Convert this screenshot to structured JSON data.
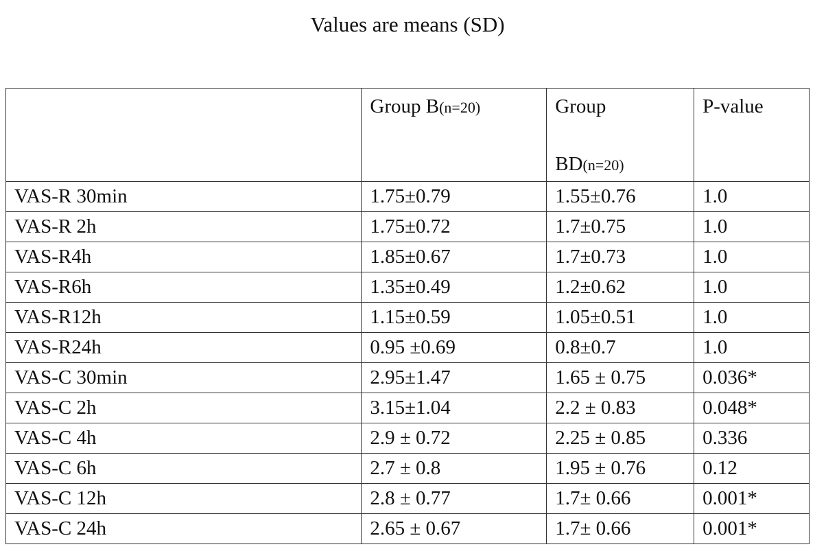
{
  "header": {
    "title": "Values are means (SD)"
  },
  "table": {
    "columns": [
      {
        "lines": [
          "Group B"
        ],
        "note": "(n=20)"
      },
      {
        "lines": [
          "Group",
          "BD"
        ],
        "note": "(n=20)"
      },
      {
        "lines": [
          "P-value"
        ]
      }
    ],
    "rows": [
      [
        "VAS-R 30min",
        "1.75±0.79",
        "1.55±0.76",
        "1.0"
      ],
      [
        "VAS-R 2h",
        "1.75±0.72",
        "1.7±0.75",
        "1.0"
      ],
      [
        "VAS-R4h",
        "1.85±0.67",
        "1.7±0.73",
        "1.0"
      ],
      [
        "VAS-R6h",
        "1.35±0.49",
        "1.2±0.62",
        "1.0"
      ],
      [
        "VAS-R12h",
        "1.15±0.59",
        "1.05±0.51",
        "1.0"
      ],
      [
        "VAS-R24h",
        "0.95 ±0.69",
        "0.8±0.7",
        "1.0"
      ],
      [
        "VAS-C 30min",
        "2.95±1.47",
        "1.65 ± 0.75",
        "0.036*"
      ],
      [
        "VAS-C 2h",
        "3.15±1.04",
        "2.2 ± 0.83",
        "0.048*"
      ],
      [
        "VAS-C 4h",
        "2.9 ± 0.72",
        "2.25 ± 0.85",
        "0.336"
      ],
      [
        "VAS-C 6h",
        "2.7 ± 0.8",
        "1.95 ± 0.76",
        "0.12"
      ],
      [
        "VAS-C 12h",
        "2.8 ± 0.77",
        "1.7± 0.66",
        "0.001*"
      ],
      [
        "VAS-C 24h",
        "2.65 ± 0.67",
        "1.7± 0.66",
        "0.001*"
      ]
    ]
  }
}
